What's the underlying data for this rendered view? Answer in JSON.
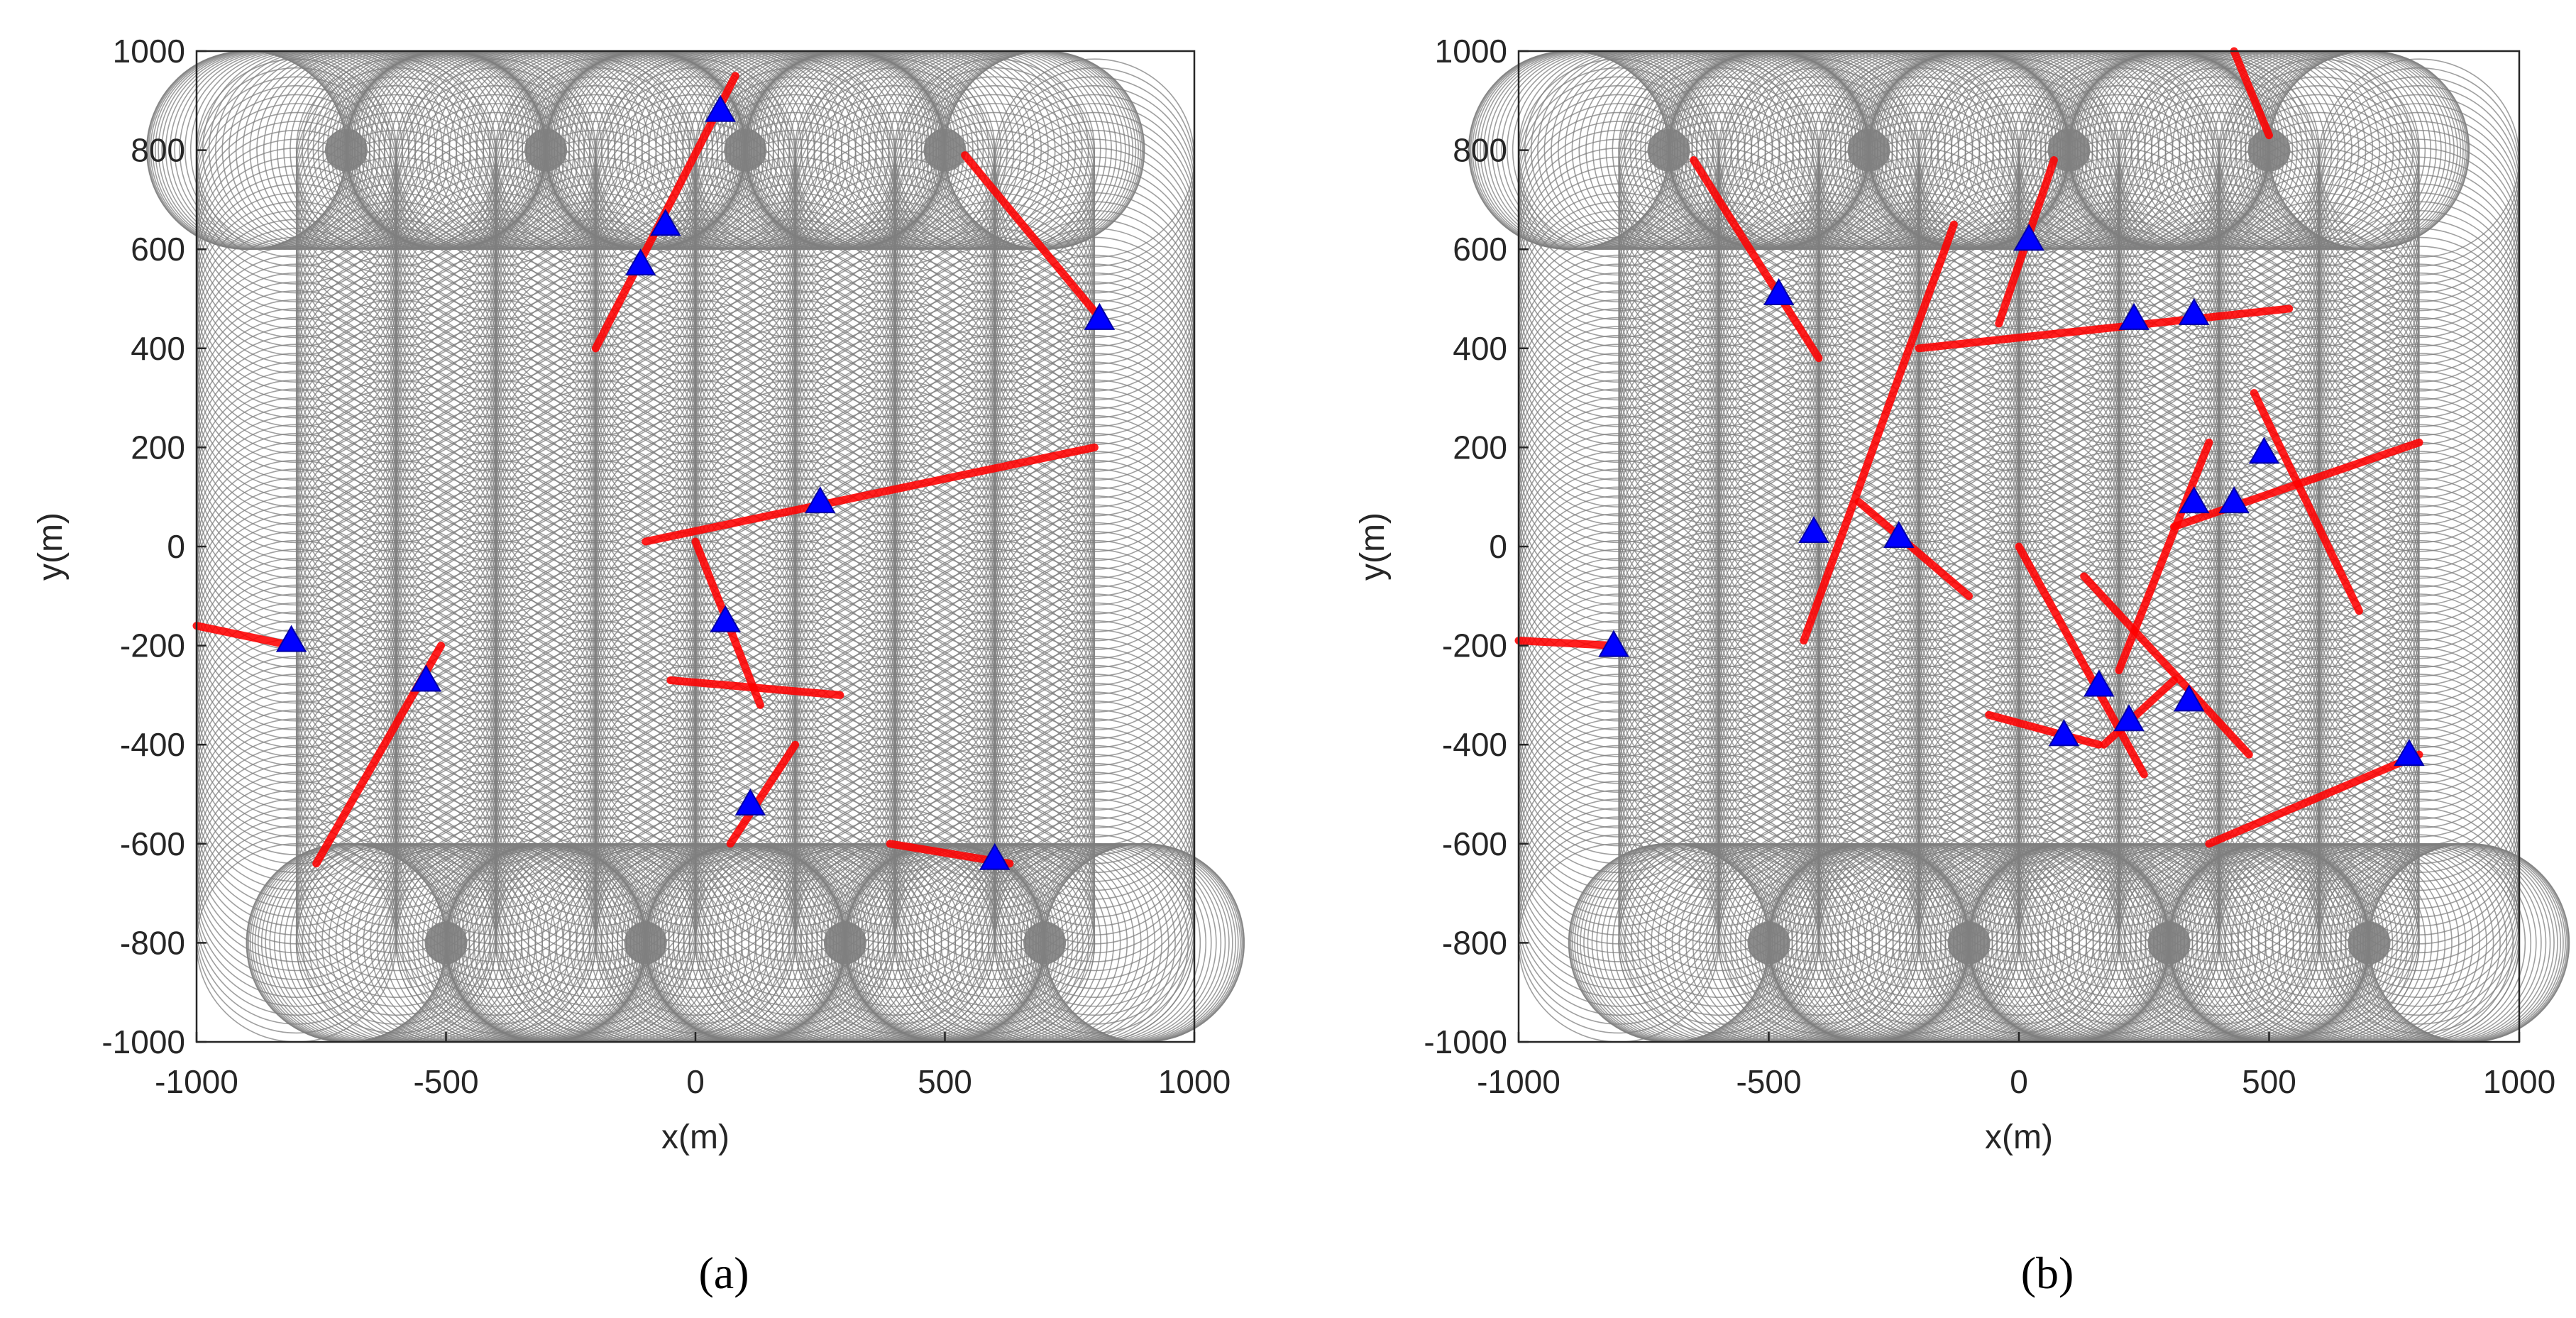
{
  "figure": {
    "panels": [
      {
        "caption": "(a)"
      },
      {
        "caption": "(b)"
      }
    ]
  },
  "chart_data": [
    {
      "type": "scatter",
      "title": "",
      "caption": "(a)",
      "xlabel": "x(m)",
      "ylabel": "y(m)",
      "xlim": [
        -1000,
        1000
      ],
      "ylim": [
        -1000,
        1000
      ],
      "xticks": [
        -1000,
        -500,
        0,
        500,
        1000
      ],
      "yticks": [
        -1000,
        -800,
        -600,
        -400,
        -200,
        0,
        200,
        400,
        600,
        800,
        1000
      ],
      "grid": false,
      "coverage_path": {
        "description": "lawnmower sweep of circles, radius ~200 m",
        "circle_radius": 200,
        "lanes_x": [
          -800,
          -600,
          -400,
          -200,
          0,
          200,
          400,
          600,
          800
        ],
        "y_range": [
          -800,
          800
        ],
        "loop_centers": [
          [
            -700,
            800
          ],
          [
            -300,
            800
          ],
          [
            100,
            800
          ],
          [
            500,
            800
          ],
          [
            -500,
            -800
          ],
          [
            -100,
            -800
          ],
          [
            300,
            -800
          ],
          [
            700,
            -800
          ]
        ],
        "color": "#7f7f7f"
      },
      "series": [
        {
          "name": "targets",
          "marker": "triangle",
          "color": "#0000ff",
          "points": [
            [
              50,
              880
            ],
            [
              -60,
              650
            ],
            [
              -110,
              570
            ],
            [
              810,
              460
            ],
            [
              250,
              90
            ],
            [
              -810,
              -190
            ],
            [
              -540,
              -270
            ],
            [
              60,
              -150
            ],
            [
              110,
              -520
            ],
            [
              600,
              -630
            ]
          ]
        },
        {
          "name": "trajectories",
          "color": "#ff0000",
          "segments": [
            [
              [
                -200,
                400
              ],
              [
                80,
                950
              ]
            ],
            [
              [
                540,
                790
              ],
              [
                820,
                450
              ]
            ],
            [
              [
                -100,
                10
              ],
              [
                800,
                200
              ]
            ],
            [
              [
                -1000,
                -160
              ],
              [
                -810,
                -200
              ]
            ],
            [
              [
                -760,
                -640
              ],
              [
                -510,
                -200
              ]
            ],
            [
              [
                0,
                10
              ],
              [
                130,
                -320
              ]
            ],
            [
              [
                -50,
                -270
              ],
              [
                290,
                -300
              ]
            ],
            [
              [
                70,
                -600
              ],
              [
                200,
                -400
              ]
            ],
            [
              [
                390,
                -600
              ],
              [
                630,
                -640
              ]
            ]
          ]
        }
      ]
    },
    {
      "type": "scatter",
      "title": "",
      "caption": "(b)",
      "xlabel": "x(m)",
      "ylabel": "y(m)",
      "xlim": [
        -1000,
        1000
      ],
      "ylim": [
        -1000,
        1000
      ],
      "xticks": [
        -1000,
        -500,
        0,
        500,
        1000
      ],
      "yticks": [
        -1000,
        -800,
        -600,
        -400,
        -200,
        0,
        200,
        400,
        600,
        800,
        1000
      ],
      "grid": false,
      "coverage_path": {
        "description": "lawnmower sweep of circles, radius ~200 m",
        "circle_radius": 200,
        "lanes_x": [
          -800,
          -600,
          -400,
          -200,
          0,
          200,
          400,
          600,
          800
        ],
        "y_range": [
          -800,
          800
        ],
        "loop_centers": [
          [
            -700,
            800
          ],
          [
            -300,
            800
          ],
          [
            100,
            800
          ],
          [
            500,
            800
          ],
          [
            -500,
            -800
          ],
          [
            -100,
            -800
          ],
          [
            300,
            -800
          ],
          [
            700,
            -800
          ]
        ],
        "color": "#7f7f7f"
      },
      "series": [
        {
          "name": "targets",
          "marker": "triangle",
          "color": "#0000ff",
          "points": [
            [
              -480,
              510
            ],
            [
              20,
              620
            ],
            [
              230,
              460
            ],
            [
              350,
              470
            ],
            [
              -410,
              30
            ],
            [
              -240,
              20
            ],
            [
              350,
              90
            ],
            [
              430,
              90
            ],
            [
              490,
              190
            ],
            [
              -810,
              -200
            ],
            [
              160,
              -280
            ],
            [
              220,
              -350
            ],
            [
              340,
              -310
            ],
            [
              90,
              -380
            ],
            [
              780,
              -420
            ]
          ]
        },
        {
          "name": "trajectories",
          "color": "#ff0000",
          "segments": [
            [
              [
                -650,
                780
              ],
              [
                -400,
                380
              ]
            ],
            [
              [
                -200,
                400
              ],
              [
                540,
                480
              ]
            ],
            [
              [
                -430,
                -190
              ],
              [
                -130,
                650
              ]
            ],
            [
              [
                -320,
                90
              ],
              [
                -100,
                -100
              ]
            ],
            [
              [
                -40,
                450
              ],
              [
                70,
                780
              ]
            ],
            [
              [
                430,
                1000
              ],
              [
                500,
                830
              ]
            ],
            [
              [
                0,
                0
              ],
              [
                250,
                -460
              ]
            ],
            [
              [
                -60,
                -340
              ],
              [
                160,
                -400
              ]
            ],
            [
              [
                130,
                -60
              ],
              [
                460,
                -420
              ]
            ],
            [
              [
                380,
                -600
              ],
              [
                800,
                -420
              ]
            ],
            [
              [
                310,
                40
              ],
              [
                800,
                210
              ]
            ],
            [
              [
                470,
                310
              ],
              [
                680,
                -130
              ]
            ],
            [
              [
                200,
                -250
              ],
              [
                380,
                210
              ]
            ],
            [
              [
                170,
                -400
              ],
              [
                310,
                -270
              ]
            ],
            [
              [
                -1000,
                -190
              ],
              [
                -810,
                -200
              ]
            ]
          ]
        }
      ]
    }
  ]
}
